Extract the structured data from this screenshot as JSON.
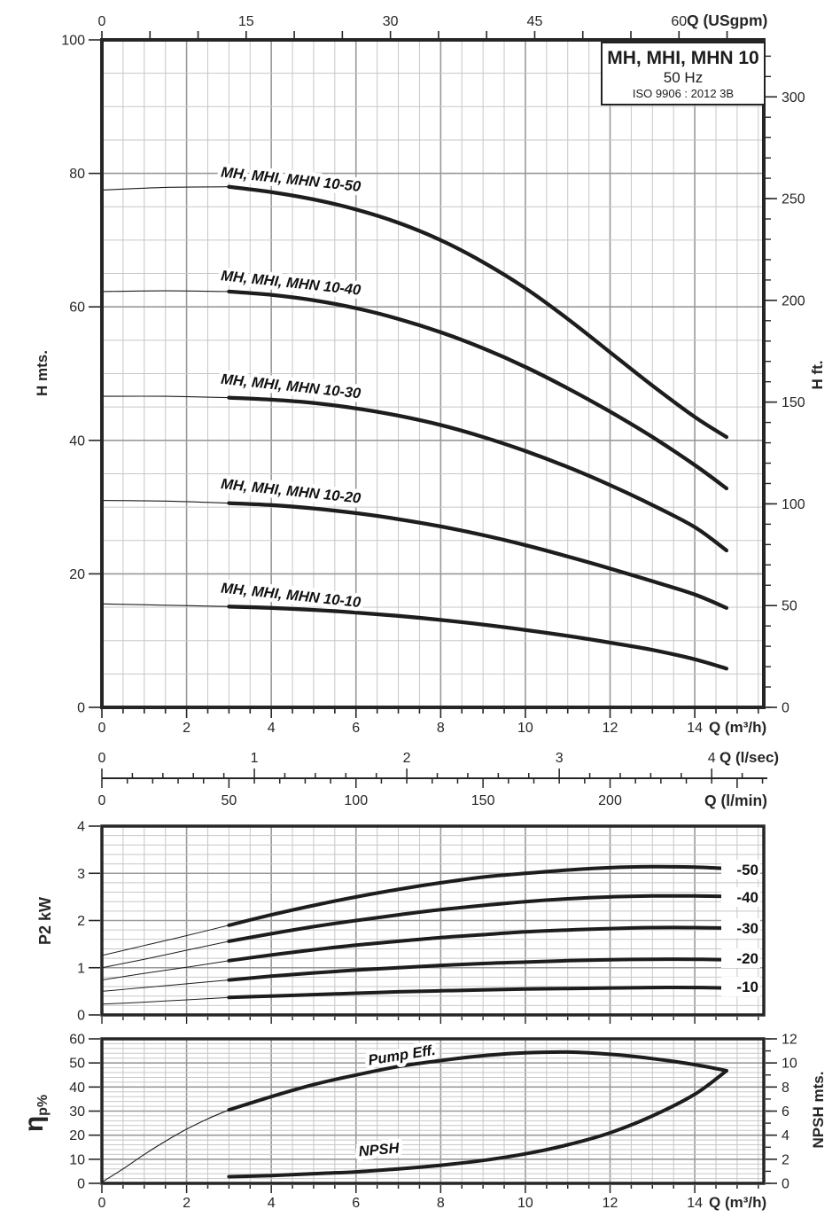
{
  "title_box": {
    "model": "MH, MHI, MHN 10",
    "frequency": "50 Hz",
    "standard": "ISO 9906 : 2012 3B"
  },
  "chart_data": [
    {
      "type": "line",
      "name": "head_vs_flow",
      "x_bottom": {
        "label": "Q (m³/h)",
        "range": [
          0,
          15.63
        ],
        "labeled_ticks": [
          0,
          2,
          4,
          6,
          8,
          10,
          12,
          14
        ],
        "minor_step": 0.5,
        "grid_major_step": 2
      },
      "x_top": {
        "label": "Q (USgpm)",
        "labeled_ticks": [
          0,
          15,
          30,
          45,
          60
        ],
        "minor_step": 5,
        "gpm_per_m3h": 4.403
      },
      "y_left": {
        "label": "H mts.",
        "range": [
          0,
          100
        ],
        "labeled_ticks": [
          0,
          20,
          40,
          60,
          80,
          100
        ],
        "grid_minor_step": 5,
        "grid_major_step": 20
      },
      "y_right": {
        "label": "H ft.",
        "range": [
          0,
          328
        ],
        "labeled_ticks": [
          0,
          50,
          100,
          150,
          200,
          250,
          300
        ],
        "minor_step": 10
      },
      "sub_scales": [
        {
          "label": "Q (l/sec)",
          "labeled_ticks": [
            0,
            1,
            2,
            3,
            4
          ],
          "minor_step": 0.2,
          "m3h_per_unit": 3.6
        },
        {
          "label": "Q (l/min)",
          "labeled_ticks": [
            0,
            50,
            100,
            150,
            200
          ],
          "minor_step": 10,
          "m3h_per_unit": 0.06
        }
      ],
      "series": [
        {
          "label": "MH, MHI, MHN 10-50",
          "label_anchor": [
            2.8,
            79.5
          ],
          "label_rotation": 6,
          "thin_points": [
            [
              0,
              77.5
            ],
            [
              1.5,
              77.9
            ],
            [
              3,
              78
            ]
          ],
          "points": [
            [
              3,
              78
            ],
            [
              4,
              77.2
            ],
            [
              5,
              76.1
            ],
            [
              6,
              74.6
            ],
            [
              7,
              72.6
            ],
            [
              8,
              70
            ],
            [
              9,
              66.7
            ],
            [
              10,
              62.8
            ],
            [
              11,
              58.2
            ],
            [
              12,
              53.2
            ],
            [
              13,
              48.2
            ],
            [
              14,
              43.5
            ],
            [
              14.75,
              40.5
            ]
          ]
        },
        {
          "label": "MH, MHI, MHN 10-40",
          "label_anchor": [
            2.8,
            64
          ],
          "label_rotation": 6,
          "thin_points": [
            [
              0,
              62.3
            ],
            [
              1.5,
              62.4
            ],
            [
              3,
              62.3
            ]
          ],
          "points": [
            [
              3,
              62.3
            ],
            [
              4,
              61.8
            ],
            [
              5,
              61
            ],
            [
              6,
              59.8
            ],
            [
              7,
              58.2
            ],
            [
              8,
              56.2
            ],
            [
              9,
              53.8
            ],
            [
              10,
              51
            ],
            [
              11,
              47.8
            ],
            [
              12,
              44.3
            ],
            [
              13,
              40.5
            ],
            [
              14,
              36.3
            ],
            [
              14.75,
              32.8
            ]
          ]
        },
        {
          "label": "MH, MHI, MHN 10-30",
          "label_anchor": [
            2.8,
            48.5
          ],
          "label_rotation": 6,
          "thin_points": [
            [
              0,
              46.6
            ],
            [
              1.5,
              46.6
            ],
            [
              3,
              46.4
            ]
          ],
          "points": [
            [
              3,
              46.4
            ],
            [
              4,
              46.1
            ],
            [
              5,
              45.6
            ],
            [
              6,
              44.8
            ],
            [
              7,
              43.7
            ],
            [
              8,
              42.3
            ],
            [
              9,
              40.5
            ],
            [
              10,
              38.4
            ],
            [
              11,
              36
            ],
            [
              12,
              33.3
            ],
            [
              13,
              30.3
            ],
            [
              14,
              27
            ],
            [
              14.75,
              23.5
            ]
          ]
        },
        {
          "label": "MH, MHI, MHN 10-20",
          "label_anchor": [
            2.8,
            32.8
          ],
          "label_rotation": 6,
          "thin_points": [
            [
              0,
              31
            ],
            [
              1.5,
              30.9
            ],
            [
              3,
              30.6
            ]
          ],
          "points": [
            [
              3,
              30.6
            ],
            [
              4,
              30.3
            ],
            [
              5,
              29.8
            ],
            [
              6,
              29.1
            ],
            [
              7,
              28.2
            ],
            [
              8,
              27.1
            ],
            [
              9,
              25.8
            ],
            [
              10,
              24.3
            ],
            [
              11,
              22.6
            ],
            [
              12,
              20.8
            ],
            [
              13,
              18.9
            ],
            [
              14,
              16.9
            ],
            [
              14.75,
              14.9
            ]
          ]
        },
        {
          "label": "MH, MHI, MHN 10-10",
          "label_anchor": [
            2.8,
            17.2
          ],
          "label_rotation": 6,
          "thin_points": [
            [
              0,
              15.5
            ],
            [
              1.5,
              15.3
            ],
            [
              3,
              15.1
            ]
          ],
          "points": [
            [
              3,
              15.1
            ],
            [
              4,
              14.9
            ],
            [
              5,
              14.6
            ],
            [
              6,
              14.2
            ],
            [
              7,
              13.7
            ],
            [
              8,
              13.1
            ],
            [
              9,
              12.4
            ],
            [
              10,
              11.6
            ],
            [
              11,
              10.7
            ],
            [
              12,
              9.7
            ],
            [
              13,
              8.6
            ],
            [
              14,
              7.2
            ],
            [
              14.75,
              5.8
            ]
          ]
        }
      ]
    },
    {
      "type": "line",
      "name": "power_vs_flow",
      "x_bottom": {
        "range": [
          0,
          15.63
        ],
        "minor_step": 0.5,
        "grid_major_step": 2
      },
      "y_left": {
        "label": "P2 kW",
        "range": [
          0,
          4
        ],
        "labeled_ticks": [
          0,
          1,
          2,
          3,
          4
        ],
        "grid_minor_step": 0.2,
        "grid_major_step": 1
      },
      "series": [
        {
          "label": "-50",
          "label_y": 3.08,
          "thin_points": [
            [
              0,
              1.26
            ],
            [
              1,
              1.47
            ],
            [
              2,
              1.68
            ],
            [
              3,
              1.9
            ]
          ],
          "points": [
            [
              3,
              1.9
            ],
            [
              4,
              2.12
            ],
            [
              5,
              2.32
            ],
            [
              6,
              2.5
            ],
            [
              7,
              2.66
            ],
            [
              8,
              2.8
            ],
            [
              9,
              2.92
            ],
            [
              10,
              3.0
            ],
            [
              11,
              3.07
            ],
            [
              12,
              3.12
            ],
            [
              13,
              3.14
            ],
            [
              14,
              3.13
            ],
            [
              14.75,
              3.1
            ]
          ]
        },
        {
          "label": "-40",
          "label_y": 2.5,
          "thin_points": [
            [
              0,
              1.0
            ],
            [
              1,
              1.18
            ],
            [
              2,
              1.37
            ],
            [
              3,
              1.56
            ]
          ],
          "points": [
            [
              3,
              1.56
            ],
            [
              4,
              1.72
            ],
            [
              5,
              1.87
            ],
            [
              6,
              2.0
            ],
            [
              7,
              2.12
            ],
            [
              8,
              2.23
            ],
            [
              9,
              2.32
            ],
            [
              10,
              2.4
            ],
            [
              11,
              2.46
            ],
            [
              12,
              2.5
            ],
            [
              13,
              2.52
            ],
            [
              14,
              2.52
            ],
            [
              14.75,
              2.51
            ]
          ]
        },
        {
          "label": "-30",
          "label_y": 1.84,
          "thin_points": [
            [
              0,
              0.74
            ],
            [
              1,
              0.88
            ],
            [
              2,
              1.01
            ],
            [
              3,
              1.15
            ]
          ],
          "points": [
            [
              3,
              1.15
            ],
            [
              4,
              1.27
            ],
            [
              5,
              1.38
            ],
            [
              6,
              1.48
            ],
            [
              7,
              1.56
            ],
            [
              8,
              1.64
            ],
            [
              9,
              1.7
            ],
            [
              10,
              1.76
            ],
            [
              11,
              1.8
            ],
            [
              12,
              1.83
            ],
            [
              13,
              1.85
            ],
            [
              14,
              1.85
            ],
            [
              14.75,
              1.84
            ]
          ]
        },
        {
          "label": "-20",
          "label_y": 1.2,
          "thin_points": [
            [
              0,
              0.5
            ],
            [
              1,
              0.58
            ],
            [
              2,
              0.66
            ],
            [
              3,
              0.74
            ]
          ],
          "points": [
            [
              3,
              0.74
            ],
            [
              4,
              0.82
            ],
            [
              5,
              0.89
            ],
            [
              6,
              0.95
            ],
            [
              7,
              1.0
            ],
            [
              8,
              1.05
            ],
            [
              9,
              1.09
            ],
            [
              10,
              1.12
            ],
            [
              11,
              1.15
            ],
            [
              12,
              1.17
            ],
            [
              13,
              1.18
            ],
            [
              14,
              1.18
            ],
            [
              14.75,
              1.17
            ]
          ]
        },
        {
          "label": "-10",
          "label_y": 0.6,
          "thin_points": [
            [
              0,
              0.23
            ],
            [
              1,
              0.27
            ],
            [
              2,
              0.32
            ],
            [
              3,
              0.37
            ]
          ],
          "points": [
            [
              3,
              0.37
            ],
            [
              4,
              0.4
            ],
            [
              5,
              0.43
            ],
            [
              6,
              0.46
            ],
            [
              7,
              0.49
            ],
            [
              8,
              0.51
            ],
            [
              9,
              0.53
            ],
            [
              10,
              0.55
            ],
            [
              11,
              0.56
            ],
            [
              12,
              0.57
            ],
            [
              13,
              0.58
            ],
            [
              14,
              0.58
            ],
            [
              14.75,
              0.57
            ]
          ]
        }
      ]
    },
    {
      "type": "line",
      "name": "efficiency_npsh_vs_flow",
      "x_bottom": {
        "label": "Q (m³/h)",
        "range": [
          0,
          15.63
        ],
        "labeled_ticks": [
          0,
          2,
          4,
          6,
          8,
          10,
          12,
          14
        ],
        "minor_step": 0.5,
        "grid_major_step": 2
      },
      "y_left": {
        "label_main": "η",
        "label_sub": "p%",
        "range": [
          0,
          60
        ],
        "labeled_ticks": [
          0,
          10,
          20,
          30,
          40,
          50,
          60
        ],
        "grid_minor_step": 2,
        "grid_major_step": 10
      },
      "y_right": {
        "label": "NPSH mts.",
        "range": [
          0,
          12
        ],
        "labeled_ticks": [
          0,
          2,
          4,
          6,
          8,
          10,
          12
        ],
        "minor_step": 1
      },
      "series": [
        {
          "label": "Pump Eff.",
          "axis": "left",
          "label_anchor": [
            7.1,
            51.3
          ],
          "label_rotation": -9,
          "thin_points": [
            [
              0,
              0.5
            ],
            [
              0.5,
              6
            ],
            [
              1,
              12
            ],
            [
              1.5,
              17.5
            ],
            [
              2,
              22.5
            ],
            [
              2.5,
              26.8
            ],
            [
              3,
              30.5
            ]
          ],
          "points": [
            [
              3,
              30.5
            ],
            [
              4,
              36
            ],
            [
              5,
              41
            ],
            [
              6,
              45
            ],
            [
              7,
              48.5
            ],
            [
              8,
              51
            ],
            [
              9,
              53
            ],
            [
              10,
              54.2
            ],
            [
              11,
              54.5
            ],
            [
              12,
              53.6
            ],
            [
              13,
              51.8
            ],
            [
              14,
              49.3
            ],
            [
              14.75,
              46.8
            ]
          ]
        },
        {
          "label": "NPSH",
          "axis": "right",
          "label_anchor": [
            6.55,
            2.4
          ],
          "label_rotation": -5,
          "points": [
            [
              3,
              0.55
            ],
            [
              4,
              0.65
            ],
            [
              5,
              0.8
            ],
            [
              6,
              0.95
            ],
            [
              7,
              1.2
            ],
            [
              8,
              1.5
            ],
            [
              9,
              1.9
            ],
            [
              10,
              2.45
            ],
            [
              11,
              3.2
            ],
            [
              12,
              4.2
            ],
            [
              13,
              5.6
            ],
            [
              14,
              7.4
            ],
            [
              14.75,
              9.35
            ]
          ]
        }
      ]
    }
  ]
}
